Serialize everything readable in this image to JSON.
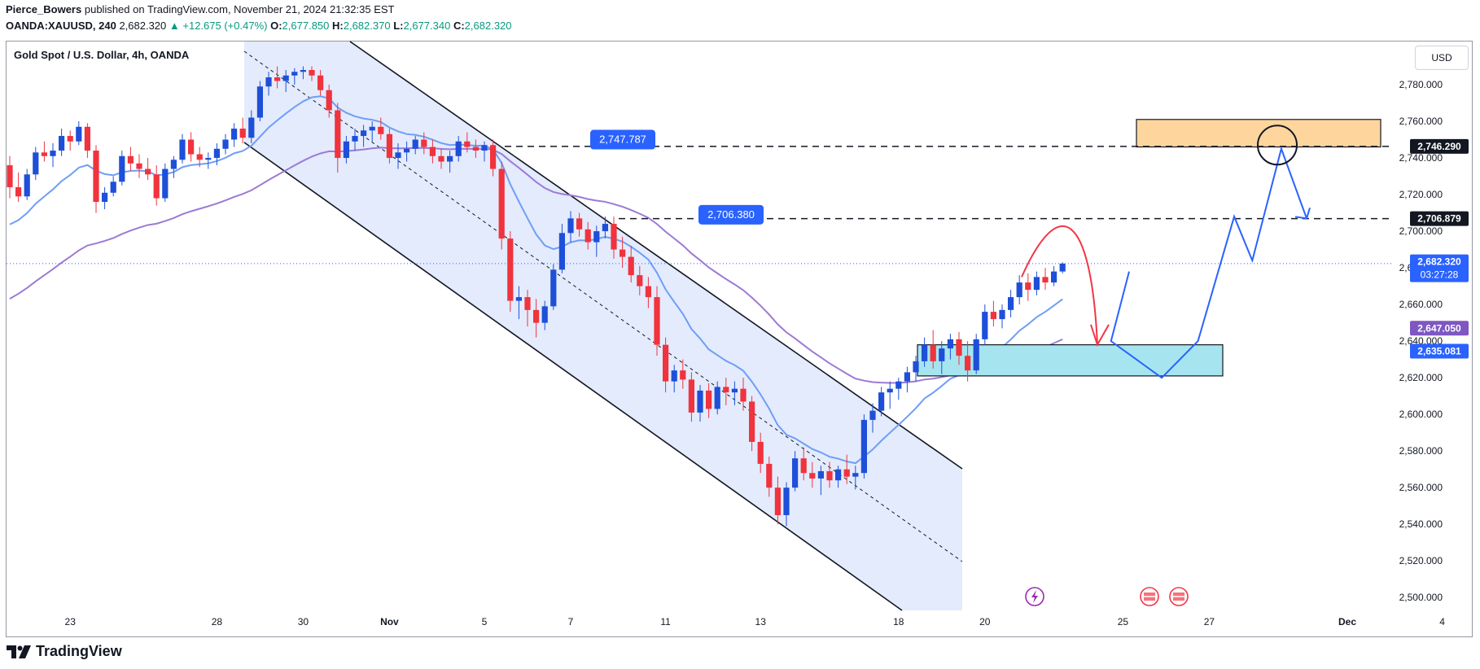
{
  "header": {
    "author": "Pierce_Bowers",
    "published_text": "published on TradingView.com, November 21, 2024 21:32:35 EST",
    "symbol": "OANDA:XAUUSD, 240",
    "last": "2,682.320",
    "change": "▲ +12.675 (+0.47%)",
    "o_label": "O:",
    "o_val": "2,677.850",
    "h_label": "H:",
    "h_val": "2,682.370",
    "l_label": "L:",
    "l_val": "2,677.340",
    "c_label": "C:",
    "c_val": "2,682.320"
  },
  "legend_title": "Gold Spot / U.S. Dollar, 4h, OANDA",
  "currency_button": "USD",
  "footer": {
    "brand": "TradingView"
  },
  "colors": {
    "up": "#1e4fd8",
    "down": "#f0333d",
    "ma_fast": "#6f9ef5",
    "ma_slow": "#9c7ad6",
    "channel_fill": "#e3ebfd",
    "resistance_box": "#ffd59e",
    "support_box": "#a6e5f0",
    "label_blue": "#2962ff",
    "projection": "#2962ff",
    "arrow_red": "#f23645",
    "price_line": "#2962ff"
  },
  "chart_data": {
    "type": "candlestick",
    "title": "Gold Spot / U.S. Dollar, 4h, OANDA",
    "ylim": [
      2493,
      2800
    ],
    "y_ticks": [
      2500,
      2520,
      2540,
      2560,
      2580,
      2600,
      2620,
      2640,
      2660,
      2680,
      2700,
      2720,
      2740,
      2760,
      2780
    ],
    "y_tick_labels": [
      "2,500.000",
      "2,520.000",
      "2,540.000",
      "2,560.000",
      "2,580.000",
      "2,600.000",
      "2,620.000",
      "2,640.000",
      "2,660.000",
      "2,680.000",
      "2,700.000",
      "2,720.000",
      "2,740.000",
      "2,760.000",
      "2,780.000"
    ],
    "x_tick_labels": [
      {
        "bar": 7,
        "label": "23"
      },
      {
        "bar": 24,
        "label": "28"
      },
      {
        "bar": 34,
        "label": "30"
      },
      {
        "bar": 44,
        "label": "Nov"
      },
      {
        "bar": 55,
        "label": "5"
      },
      {
        "bar": 65,
        "label": "7"
      },
      {
        "bar": 76,
        "label": "11"
      },
      {
        "bar": 87,
        "label": "13"
      },
      {
        "bar": 103,
        "label": "18"
      },
      {
        "bar": 113,
        "label": "20"
      },
      {
        "bar": 129,
        "label": "25"
      },
      {
        "bar": 139,
        "label": "27"
      },
      {
        "bar": 155,
        "label": "Dec"
      },
      {
        "bar": 166,
        "label": "4"
      }
    ],
    "candles": [
      [
        2736,
        2741,
        2718,
        2724
      ],
      [
        2724,
        2732,
        2716,
        2719
      ],
      [
        2719,
        2734,
        2717,
        2731
      ],
      [
        2731,
        2746,
        2728,
        2743
      ],
      [
        2743,
        2749,
        2738,
        2741
      ],
      [
        2741,
        2748,
        2735,
        2744
      ],
      [
        2744,
        2756,
        2741,
        2752
      ],
      [
        2752,
        2755,
        2744,
        2749
      ],
      [
        2749,
        2760,
        2747,
        2757
      ],
      [
        2757,
        2759,
        2740,
        2744
      ],
      [
        2744,
        2747,
        2710,
        2716
      ],
      [
        2716,
        2724,
        2712,
        2721
      ],
      [
        2721,
        2730,
        2719,
        2727
      ],
      [
        2727,
        2744,
        2725,
        2741
      ],
      [
        2741,
        2746,
        2733,
        2737
      ],
      [
        2737,
        2742,
        2729,
        2734
      ],
      [
        2734,
        2740,
        2728,
        2731
      ],
      [
        2731,
        2736,
        2714,
        2718
      ],
      [
        2718,
        2737,
        2716,
        2734
      ],
      [
        2734,
        2741,
        2729,
        2739
      ],
      [
        2739,
        2753,
        2737,
        2750
      ],
      [
        2750,
        2754,
        2738,
        2742
      ],
      [
        2742,
        2746,
        2735,
        2739
      ],
      [
        2739,
        2743,
        2734,
        2740
      ],
      [
        2740,
        2748,
        2736,
        2745
      ],
      [
        2745,
        2753,
        2742,
        2750
      ],
      [
        2750,
        2759,
        2746,
        2756
      ],
      [
        2756,
        2762,
        2748,
        2751
      ],
      [
        2751,
        2766,
        2748,
        2762
      ],
      [
        2762,
        2782,
        2760,
        2779
      ],
      [
        2779,
        2787,
        2774,
        2784
      ],
      [
        2784,
        2790,
        2778,
        2782
      ],
      [
        2782,
        2788,
        2776,
        2785
      ],
      [
        2785,
        2789,
        2780,
        2787
      ],
      [
        2787,
        2790,
        2783,
        2788
      ],
      [
        2788,
        2790,
        2782,
        2785
      ],
      [
        2785,
        2788,
        2774,
        2777
      ],
      [
        2777,
        2780,
        2762,
        2766
      ],
      [
        2766,
        2770,
        2732,
        2740
      ],
      [
        2740,
        2752,
        2737,
        2749
      ],
      [
        2749,
        2756,
        2744,
        2752
      ],
      [
        2752,
        2758,
        2746,
        2755
      ],
      [
        2755,
        2760,
        2749,
        2757
      ],
      [
        2757,
        2762,
        2750,
        2753
      ],
      [
        2753,
        2756,
        2737,
        2740
      ],
      [
        2740,
        2748,
        2734,
        2743
      ],
      [
        2743,
        2749,
        2738,
        2745
      ],
      [
        2745,
        2752,
        2742,
        2750
      ],
      [
        2750,
        2754,
        2742,
        2746
      ],
      [
        2746,
        2750,
        2737,
        2741
      ],
      [
        2741,
        2745,
        2734,
        2738
      ],
      [
        2738,
        2744,
        2732,
        2741
      ],
      [
        2741,
        2752,
        2738,
        2749
      ],
      [
        2749,
        2754,
        2743,
        2746
      ],
      [
        2746,
        2750,
        2740,
        2744
      ],
      [
        2744,
        2749,
        2738,
        2747
      ],
      [
        2747,
        2750,
        2730,
        2734
      ],
      [
        2734,
        2738,
        2690,
        2696
      ],
      [
        2696,
        2700,
        2656,
        2662
      ],
      [
        2662,
        2670,
        2652,
        2664
      ],
      [
        2664,
        2668,
        2648,
        2657
      ],
      [
        2657,
        2663,
        2642,
        2650
      ],
      [
        2650,
        2662,
        2646,
        2659
      ],
      [
        2659,
        2682,
        2657,
        2679
      ],
      [
        2679,
        2704,
        2677,
        2699
      ],
      [
        2699,
        2711,
        2694,
        2707
      ],
      [
        2707,
        2710,
        2697,
        2701
      ],
      [
        2701,
        2705,
        2690,
        2694
      ],
      [
        2694,
        2703,
        2686,
        2700
      ],
      [
        2700,
        2708,
        2696,
        2704
      ],
      [
        2704,
        2708,
        2685,
        2690
      ],
      [
        2690,
        2697,
        2680,
        2686
      ],
      [
        2686,
        2692,
        2672,
        2676
      ],
      [
        2676,
        2681,
        2665,
        2670
      ],
      [
        2670,
        2675,
        2658,
        2664
      ],
      [
        2664,
        2670,
        2632,
        2638
      ],
      [
        2638,
        2642,
        2612,
        2618
      ],
      [
        2618,
        2627,
        2612,
        2624
      ],
      [
        2624,
        2630,
        2614,
        2619
      ],
      [
        2619,
        2623,
        2596,
        2601
      ],
      [
        2601,
        2616,
        2596,
        2613
      ],
      [
        2613,
        2617,
        2598,
        2603
      ],
      [
        2603,
        2618,
        2600,
        2615
      ],
      [
        2615,
        2620,
        2605,
        2612
      ],
      [
        2612,
        2618,
        2605,
        2614
      ],
      [
        2614,
        2620,
        2602,
        2607
      ],
      [
        2607,
        2610,
        2580,
        2585
      ],
      [
        2585,
        2590,
        2568,
        2573
      ],
      [
        2573,
        2577,
        2555,
        2560
      ],
      [
        2560,
        2566,
        2540,
        2545
      ],
      [
        2545,
        2563,
        2539,
        2560
      ],
      [
        2560,
        2580,
        2558,
        2576
      ],
      [
        2576,
        2582,
        2564,
        2568
      ],
      [
        2568,
        2574,
        2560,
        2565
      ],
      [
        2565,
        2572,
        2556,
        2569
      ],
      [
        2569,
        2574,
        2560,
        2564
      ],
      [
        2564,
        2572,
        2560,
        2570
      ],
      [
        2570,
        2578,
        2562,
        2566
      ],
      [
        2566,
        2572,
        2559,
        2568
      ],
      [
        2568,
        2600,
        2565,
        2597
      ],
      [
        2597,
        2606,
        2590,
        2602
      ],
      [
        2602,
        2615,
        2599,
        2612
      ],
      [
        2612,
        2618,
        2603,
        2614
      ],
      [
        2614,
        2620,
        2608,
        2618
      ],
      [
        2618,
        2626,
        2612,
        2623
      ],
      [
        2623,
        2632,
        2618,
        2629
      ],
      [
        2629,
        2642,
        2626,
        2638
      ],
      [
        2638,
        2646,
        2625,
        2629
      ],
      [
        2629,
        2640,
        2622,
        2636
      ],
      [
        2636,
        2644,
        2630,
        2641
      ],
      [
        2641,
        2645,
        2627,
        2632
      ],
      [
        2632,
        2640,
        2618,
        2624
      ],
      [
        2624,
        2644,
        2622,
        2641
      ],
      [
        2641,
        2660,
        2638,
        2656
      ],
      [
        2656,
        2662,
        2648,
        2652
      ],
      [
        2652,
        2660,
        2647,
        2657
      ],
      [
        2657,
        2668,
        2653,
        2664
      ],
      [
        2664,
        2676,
        2660,
        2672
      ],
      [
        2672,
        2677,
        2662,
        2668
      ],
      [
        2668,
        2678,
        2665,
        2675
      ],
      [
        2675,
        2680,
        2668,
        2672
      ],
      [
        2672,
        2681,
        2670,
        2678
      ],
      [
        2678,
        2683,
        2677,
        2682.32
      ]
    ],
    "ma_fast_label": "2,635.081",
    "ma_slow_label": "2,647.050",
    "last_price_label": "2,682.320",
    "countdown_label": "03:27:28",
    "levels": [
      {
        "price": 2746.29,
        "label": "2,746.290",
        "tag": "2,747.787"
      },
      {
        "price": 2706.879,
        "label": "2,706.879",
        "tag": "2,706.380"
      }
    ],
    "zones": [
      {
        "name": "resistance",
        "top": 2761,
        "bottom": 2746
      },
      {
        "name": "support",
        "top": 2638,
        "bottom": 2621
      }
    ],
    "projection_points": [
      [
        2641,
        2678
      ],
      [
        2636,
        2640
      ],
      [
        2650,
        2620
      ],
      [
        2660,
        2640
      ],
      [
        2670,
        2708
      ],
      [
        2675,
        2684
      ],
      [
        2683,
        2745
      ],
      [
        2690,
        2707
      ]
    ],
    "markers": [
      "lightning",
      "us-flag",
      "us-flag"
    ]
  }
}
